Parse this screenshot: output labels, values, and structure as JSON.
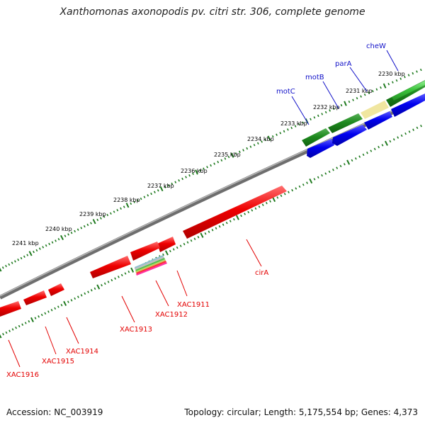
{
  "title": "Xanthomonas axonopodis pv. citri str. 306, complete genome",
  "accession": "Accession: NC_003919",
  "topology": "Topology: circular; Length: 5,175,554 bp; Genes: 4,373",
  "colors": {
    "backbone": "#8a8a8a",
    "tick": "#1f7a1f",
    "gene_red": "#ee0000",
    "gene_blue": "#0000ee",
    "gene_green_dark": "#1e8a1e",
    "gene_green_light": "#3cc43c",
    "gene_tan": "#f0e6a0"
  },
  "tick_labels": [
    "2230 kbp",
    "2231 kbp",
    "2232 kbp",
    "2233 kbp",
    "2234 kbp",
    "2235 kbp",
    "2236 kbp",
    "2237 kbp",
    "2238 kbp",
    "2239 kbp",
    "2240 kbp",
    "2241 kbp"
  ],
  "gene_labels_red": [
    "cirA",
    "XAC1911",
    "XAC1912",
    "XAC1913",
    "XAC1914",
    "XAC1915",
    "XAC1916"
  ],
  "gene_labels_blue": [
    "motC",
    "motB",
    "parA",
    "cheW"
  ]
}
